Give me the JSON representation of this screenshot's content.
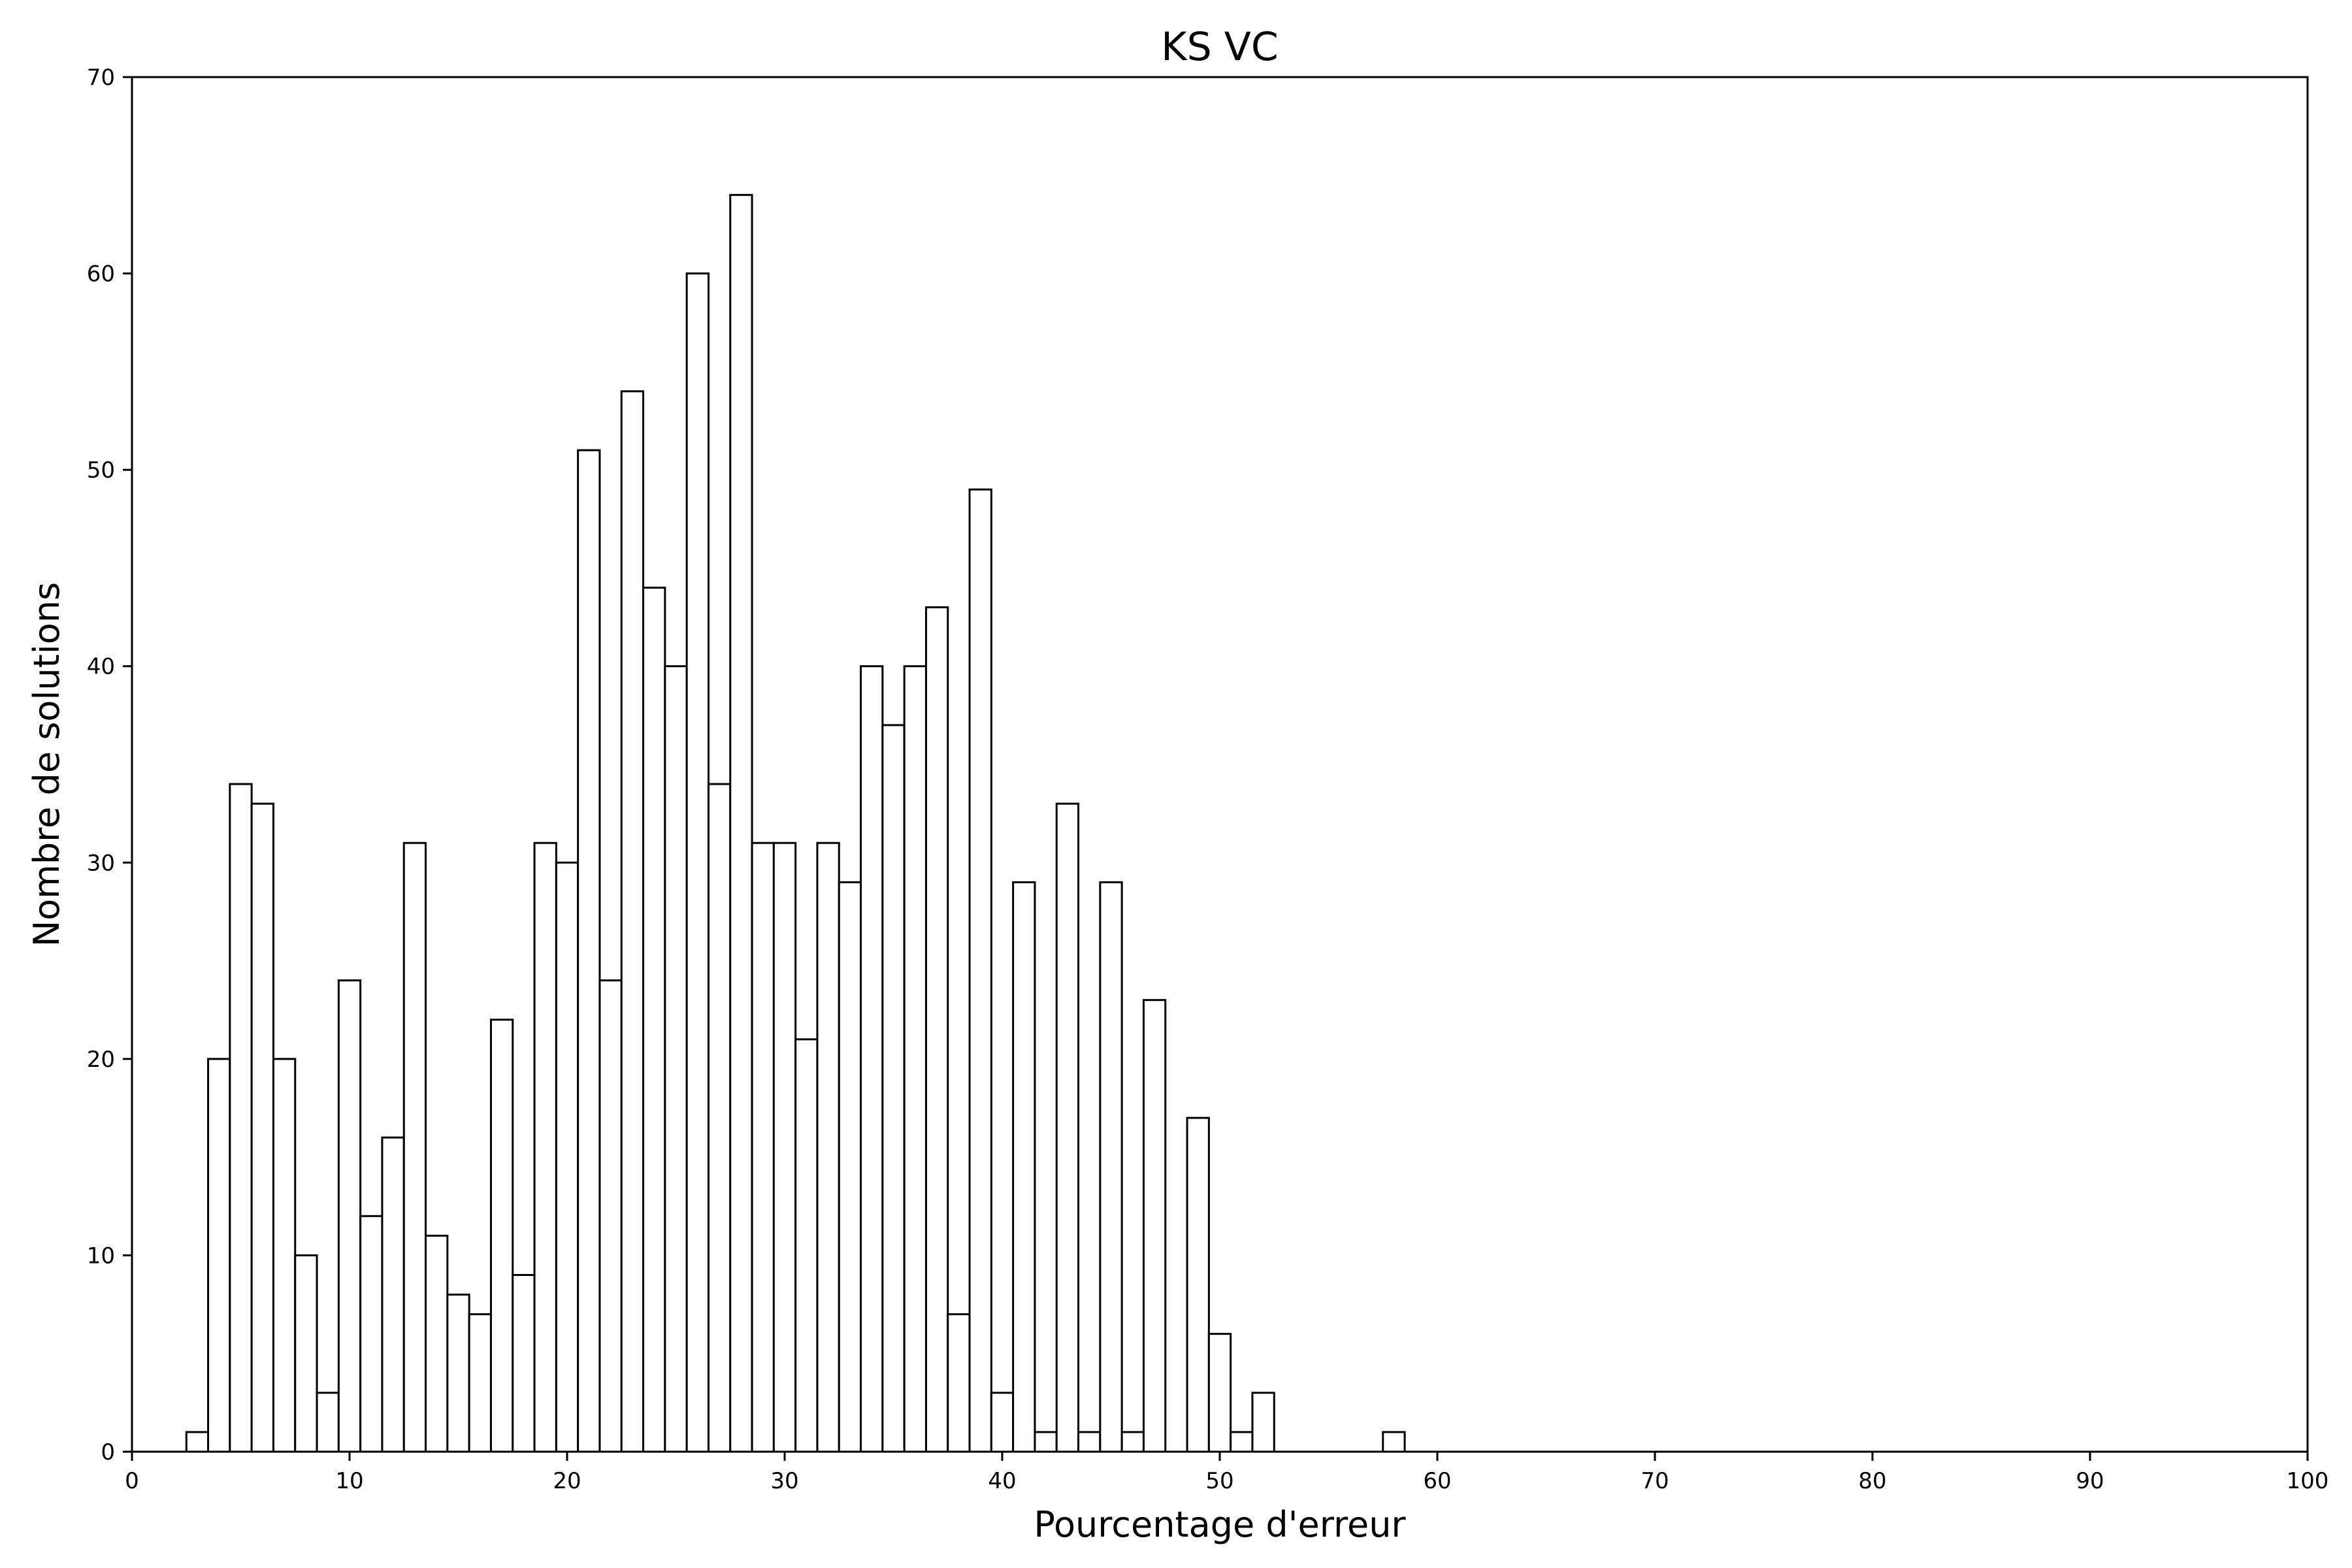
{
  "chart_data": {
    "type": "bar",
    "title": "KS VC",
    "xlabel": "Pourcentage d'erreur",
    "ylabel": "Nombre de solutions",
    "xlim": [
      0,
      100
    ],
    "ylim": [
      0,
      70
    ],
    "xticks": [
      0,
      10,
      20,
      30,
      40,
      50,
      60,
      70,
      80,
      90,
      100
    ],
    "yticks": [
      0,
      10,
      20,
      30,
      40,
      50,
      60,
      70
    ],
    "bin_width": 1,
    "bin_starts": [
      2.5,
      3.5,
      4.5,
      5.5,
      6.5,
      7.5,
      8.5,
      9.5,
      10.5,
      11.5,
      12.5,
      13.5,
      14.5,
      15.5,
      16.5,
      17.5,
      18.5,
      19.5,
      20.5,
      21.5,
      22.5,
      23.5,
      24.5,
      25.5,
      26.5,
      27.5,
      28.5,
      29.5,
      30.5,
      31.5,
      32.5,
      33.5,
      34.5,
      35.5,
      36.5,
      37.5,
      38.5,
      39.5,
      40.5,
      41.5,
      42.5,
      43.5,
      44.5,
      45.5,
      46.5,
      47.5,
      48.5,
      49.5,
      50.5,
      51.5,
      57.5
    ],
    "values": [
      1,
      20,
      34,
      33,
      20,
      10,
      3,
      24,
      12,
      16,
      31,
      11,
      8,
      7,
      22,
      9,
      31,
      30,
      51,
      24,
      54,
      44,
      40,
      60,
      34,
      64,
      31,
      31,
      21,
      31,
      29,
      40,
      37,
      40,
      43,
      7,
      49,
      3,
      29,
      1,
      33,
      1,
      29,
      1,
      23,
      0,
      17,
      6,
      1,
      3,
      1
    ],
    "bar_fill": "#ffffff",
    "bar_edge": "#000000",
    "grid": false
  }
}
